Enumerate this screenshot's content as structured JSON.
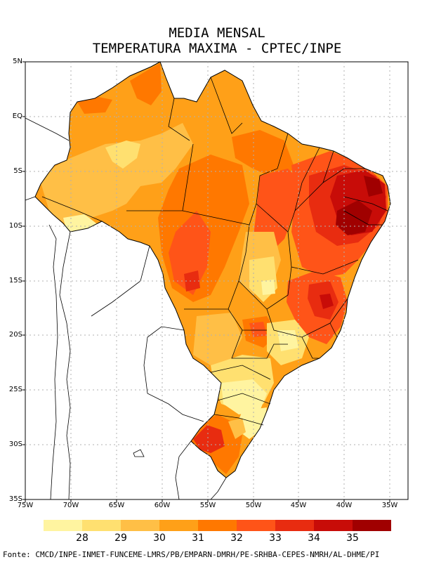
{
  "title": {
    "line1": "MEDIA MENSAL",
    "line2": "TEMPERATURA MAXIMA - CPTEC/INPE"
  },
  "axes": {
    "lat_labels": [
      "5N",
      "EQ",
      "5S",
      "10S",
      "15S",
      "20S",
      "25S",
      "30S",
      "35S"
    ],
    "lon_labels": [
      "75W",
      "70W",
      "65W",
      "60W",
      "55W",
      "50W",
      "45W",
      "40W",
      "35W"
    ]
  },
  "legend": {
    "colors": [
      "#fff4a0",
      "#ffe070",
      "#ffbf46",
      "#ffa018",
      "#ff7800",
      "#ff5418",
      "#e82c10",
      "#c80c08",
      "#a00000"
    ],
    "labels": [
      "28",
      "29",
      "30",
      "31",
      "32",
      "33",
      "34",
      "35"
    ]
  },
  "map": {
    "ocean_color": "#ffffff",
    "boundary_color": "#000000",
    "grid_color": "#b0b0b0"
  },
  "source": "Fonte: CMCD/INPE-INMET-FUNCEME-LMRS/PB/EMPARN-DMRH/PE-SRHBA-CEPES-NMRH/AL-DHME/PI"
}
